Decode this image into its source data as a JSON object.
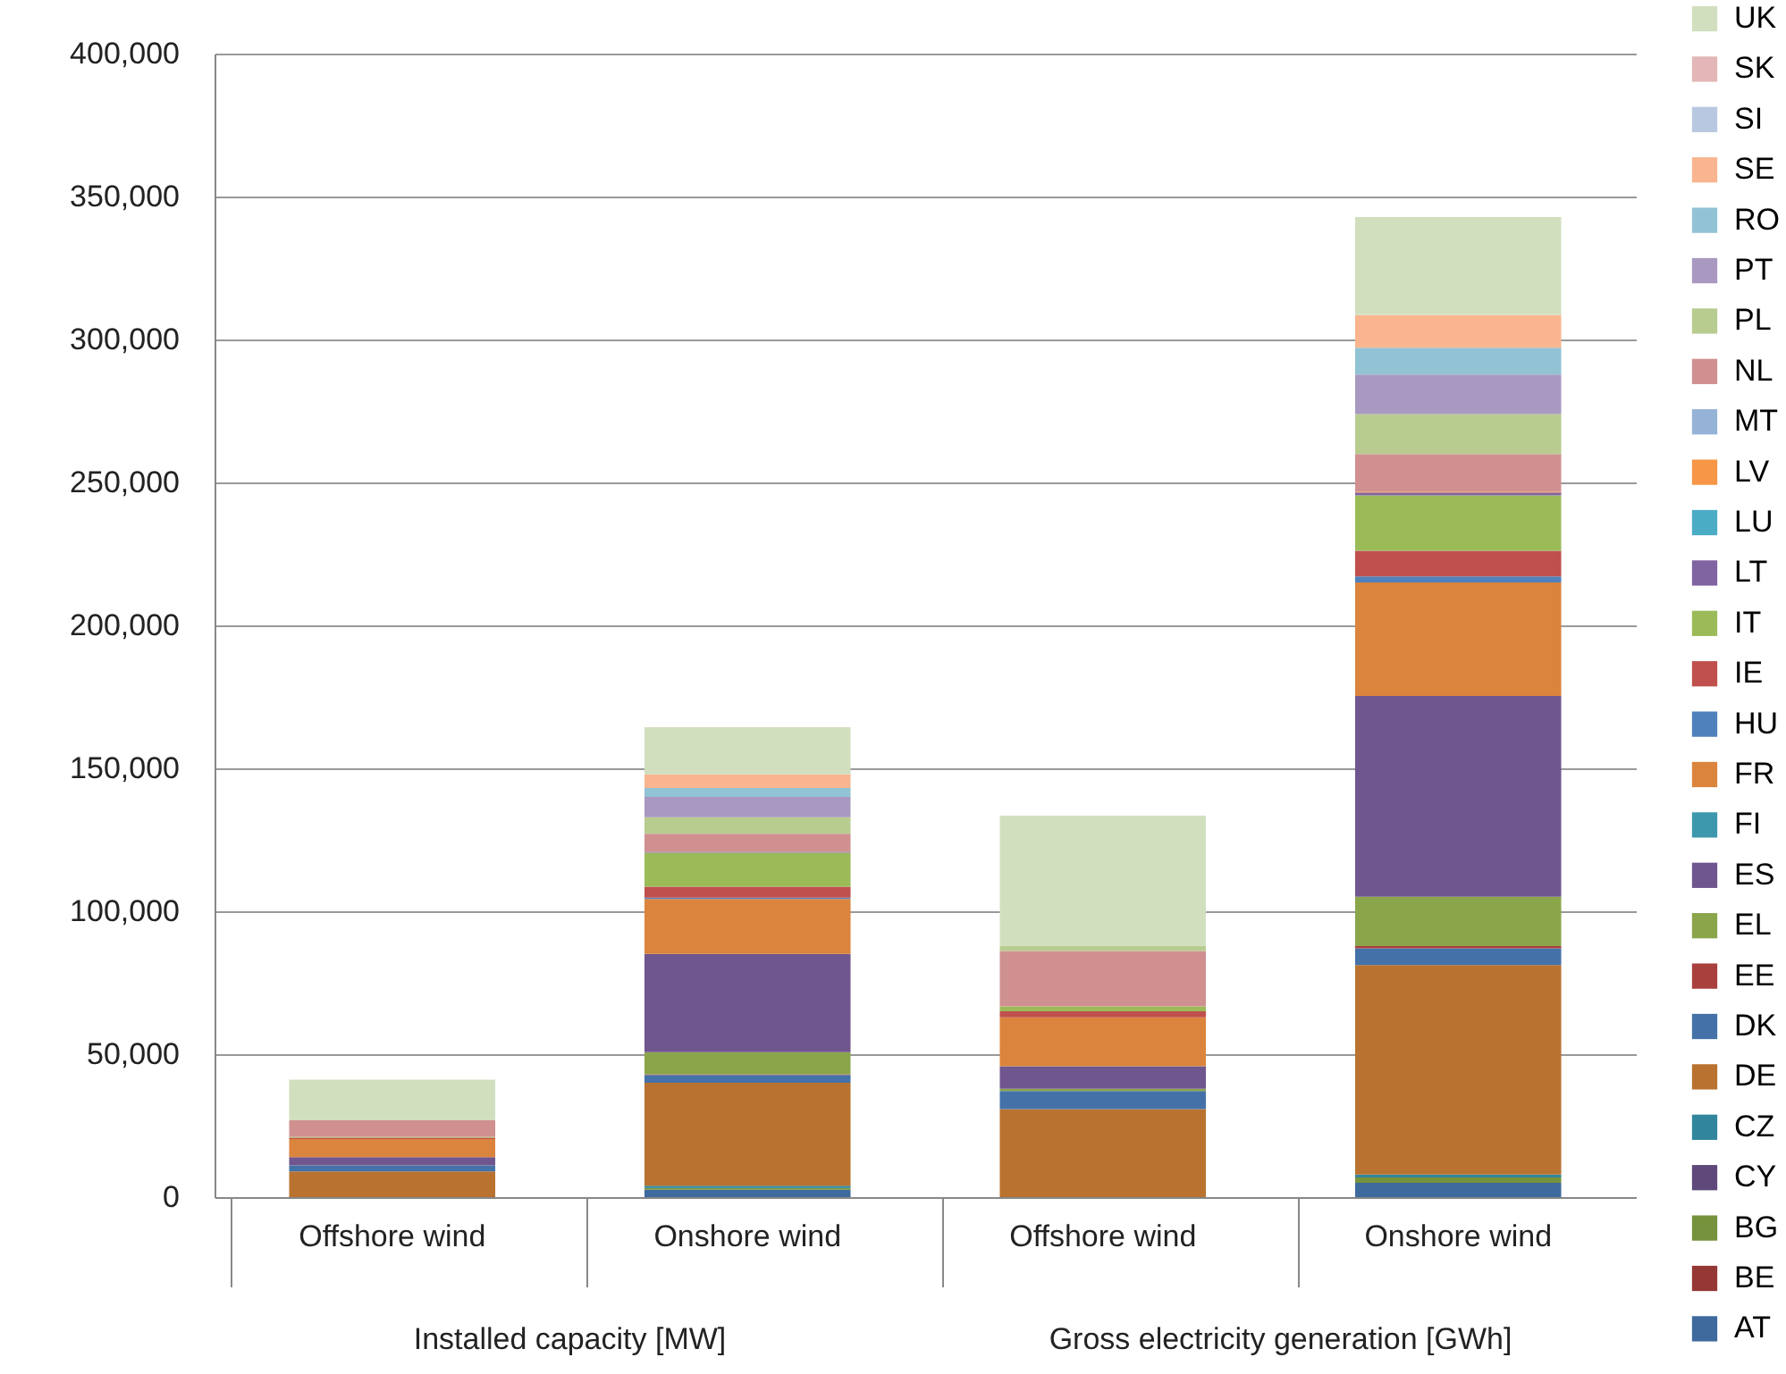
{
  "chart_data": {
    "type": "bar",
    "stacked": true,
    "categories": [
      "Offshore wind",
      "Onshore wind",
      "Offshore wind",
      "Onshore wind"
    ],
    "annotations": [
      "Installed capacity [MW]",
      "Gross electricity generation [GWh]"
    ],
    "ylim": [
      0,
      400000
    ],
    "yticks": [
      0,
      {
        "value": 50000,
        "label": "50,000"
      },
      {
        "value": 100000,
        "label": "100,000"
      },
      {
        "value": 150000,
        "label": "150,000"
      },
      {
        "value": 200000,
        "label": "200,000"
      },
      {
        "value": 250000,
        "label": "250,000"
      },
      {
        "value": 300000,
        "label": "300,000"
      },
      {
        "value": 350000,
        "label": "350,000"
      },
      {
        "value": 400000,
        "label": "400,000"
      }
    ],
    "grid": "y",
    "legend": "right",
    "series": [
      {
        "name": "AT",
        "color": "#3e6a9e",
        "values": [
          null,
          2600,
          null,
          5000
        ]
      },
      {
        "name": "BE",
        "color": "#953735",
        "values": [
          null,
          null,
          null,
          null
        ]
      },
      {
        "name": "BG",
        "color": "#76923c",
        "values": [
          null,
          600,
          null,
          1900
        ]
      },
      {
        "name": "CY",
        "color": "#5f497a",
        "values": [
          null,
          null,
          null,
          null
        ]
      },
      {
        "name": "CZ",
        "color": "#31859c",
        "values": [
          null,
          800,
          null,
          1000
        ]
      },
      {
        "name": "DE",
        "color": "#b9722f",
        "values": [
          9000,
          36000,
          30800,
          73300
        ]
      },
      {
        "name": "DK",
        "color": "#4472a8",
        "values": [
          2100,
          2700,
          6300,
          5800
        ]
      },
      {
        "name": "EE",
        "color": "#a9403d",
        "values": [
          null,
          300,
          null,
          800
        ]
      },
      {
        "name": "EL",
        "color": "#8aa54a",
        "values": [
          null,
          7700,
          800,
          17300
        ]
      },
      {
        "name": "ES",
        "color": "#70568e",
        "values": [
          2900,
          34400,
          7900,
          70200
        ]
      },
      {
        "name": "FI",
        "color": "#3d98ad",
        "values": [
          null,
          null,
          null,
          null
        ]
      },
      {
        "name": "FR",
        "color": "#db843d",
        "values": [
          6300,
          19200,
          17100,
          39700
        ]
      },
      {
        "name": "HU",
        "color": "#4f81bd",
        "values": [
          null,
          500,
          null,
          2100
        ]
      },
      {
        "name": "IE",
        "color": "#c0504d",
        "values": [
          500,
          3800,
          2100,
          9000
        ]
      },
      {
        "name": "IT",
        "color": "#9bbb59",
        "values": [
          300,
          11900,
          1700,
          19400
        ]
      },
      {
        "name": "LT",
        "color": "#8064a2",
        "values": [
          null,
          300,
          null,
          1000
        ]
      },
      {
        "name": "LU",
        "color": "#4bacc6",
        "values": [
          null,
          null,
          null,
          null
        ]
      },
      {
        "name": "LV",
        "color": "#f79646",
        "values": [
          null,
          null,
          null,
          300
        ]
      },
      {
        "name": "MT",
        "color": "#95b3d7",
        "values": [
          null,
          null,
          null,
          null
        ]
      },
      {
        "name": "NL",
        "color": "#d09090",
        "values": [
          5800,
          6300,
          19400,
          13100
        ]
      },
      {
        "name": "PL",
        "color": "#b8cc90",
        "values": [
          null,
          5800,
          1900,
          14000
        ]
      },
      {
        "name": "PT",
        "color": "#a999c0",
        "values": [
          null,
          7100,
          null,
          13800
        ]
      },
      {
        "name": "RO",
        "color": "#92c3d5",
        "values": [
          null,
          3100,
          null,
          9400
        ]
      },
      {
        "name": "SE",
        "color": "#f8b58f",
        "values": [
          null,
          4800,
          null,
          11500
        ]
      },
      {
        "name": "SI",
        "color": "#b9c8e1",
        "values": [
          null,
          null,
          null,
          null
        ]
      },
      {
        "name": "SK",
        "color": "#e3b7b7",
        "values": [
          null,
          null,
          null,
          null
        ]
      },
      {
        "name": "UK",
        "color": "#d1dfbf",
        "values": [
          14200,
          16500,
          45400,
          34200
        ]
      }
    ]
  }
}
